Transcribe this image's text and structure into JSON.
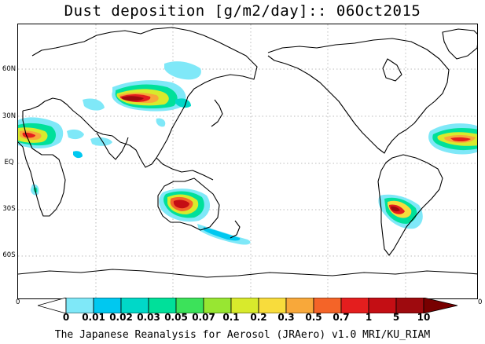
{
  "title": "Dust deposition [g/m2/day]:: 06Oct2015",
  "latitude_labels": [
    "60N",
    "30N",
    "EQ",
    "30S",
    "60S"
  ],
  "axis_edge_labels": {
    "left": "0",
    "right": "0"
  },
  "colorbar": {
    "labels": [
      "0",
      "0.01",
      "0.02",
      "0.03",
      "0.05",
      "0.07",
      "0.1",
      "0.2",
      "0.3",
      "0.5",
      "0.7",
      "1",
      "5",
      "10"
    ],
    "colors": [
      "#ffffff",
      "#7fe8f8",
      "#00c8f0",
      "#00d8c8",
      "#00e09a",
      "#3ce25a",
      "#98e632",
      "#d8ea2c",
      "#f8dc3c",
      "#f8a83a",
      "#f46428",
      "#e41e1e",
      "#c40e14",
      "#9e0a0e",
      "#780000"
    ]
  },
  "credit": "The Japanese Reanalysis for Aerosol (JRAero) v1.0 MRI/KU_RIAM"
}
